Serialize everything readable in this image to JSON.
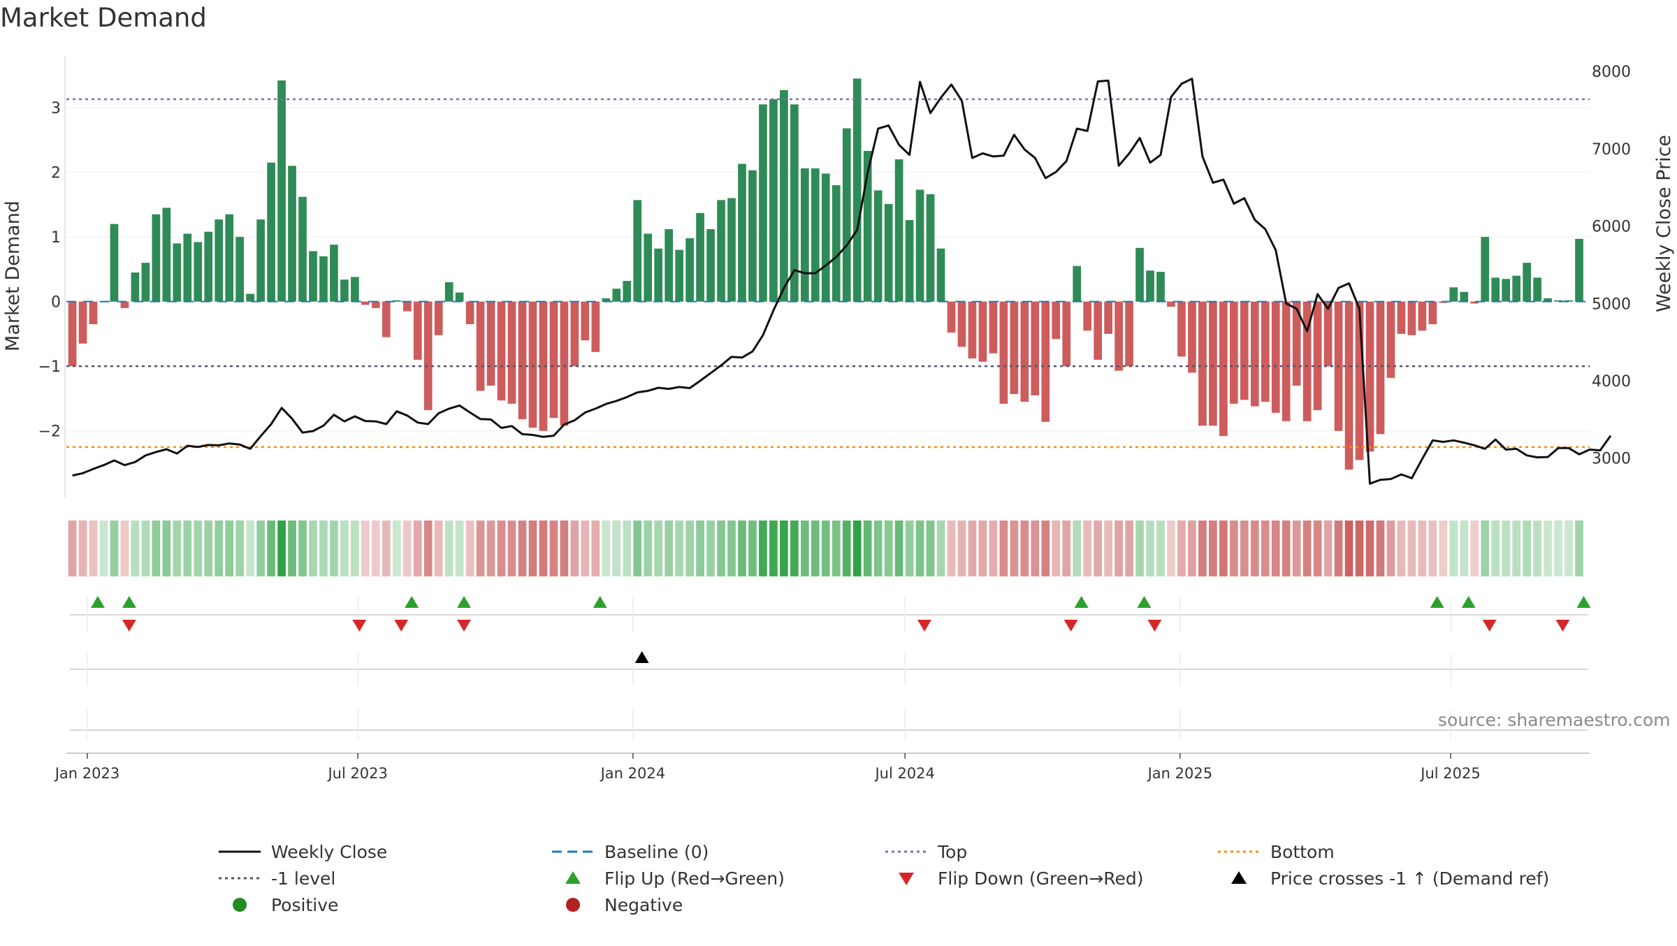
{
  "chart_data": {
    "type": "bar",
    "title": "Market Demand",
    "ylabel": "Market Demand",
    "ylabel_right": "Weekly Close Price",
    "ylim": [
      -2.9,
      3.8
    ],
    "ylim_right": [
      2600,
      8200
    ],
    "yticks": [
      -2,
      -1,
      0,
      1,
      2,
      3
    ],
    "yticks_right": [
      3000,
      4000,
      5000,
      6000,
      7000,
      8000
    ],
    "x_start": "2022-12-18",
    "x_end": "2025-10-02",
    "xticks": [
      {
        "date": "2023-01-01",
        "label": "Jan 2023"
      },
      {
        "date": "2023-07-01",
        "label": "Jul 2023"
      },
      {
        "date": "2024-01-01",
        "label": "Jan 2024"
      },
      {
        "date": "2024-07-01",
        "label": "Jul 2024"
      },
      {
        "date": "2025-01-01",
        "label": "Jan 2025"
      },
      {
        "date": "2025-07-01",
        "label": "Jul 2025"
      }
    ],
    "first_week": "2022-12-22",
    "demand": [
      -1.0,
      -0.65,
      -0.35,
      0.0,
      1.2,
      -0.1,
      0.45,
      0.6,
      1.35,
      1.45,
      0.9,
      1.05,
      0.92,
      1.08,
      1.27,
      1.35,
      1.0,
      0.12,
      1.27,
      2.15,
      3.42,
      2.1,
      1.62,
      0.78,
      0.7,
      0.88,
      0.34,
      0.38,
      -0.05,
      -0.1,
      -0.55,
      0.02,
      -0.15,
      -0.9,
      -1.68,
      -0.52,
      0.3,
      0.14,
      -0.35,
      -1.38,
      -1.3,
      -1.53,
      -1.58,
      -1.82,
      -1.95,
      -2.0,
      -1.8,
      -1.92,
      -1.0,
      -0.6,
      -0.78,
      0.05,
      0.2,
      0.32,
      1.57,
      1.05,
      0.82,
      1.12,
      0.8,
      0.98,
      1.37,
      1.12,
      1.57,
      1.6,
      2.13,
      2.03,
      3.05,
      3.13,
      3.27,
      3.05,
      2.06,
      2.06,
      1.98,
      1.8,
      2.68,
      3.45,
      2.33,
      1.72,
      1.51,
      2.2,
      1.26,
      1.73,
      1.66,
      0.82,
      -0.48,
      -0.7,
      -0.88,
      -0.93,
      -0.8,
      -1.58,
      -1.43,
      -1.55,
      -1.45,
      -1.86,
      -0.58,
      -1.0,
      0.55,
      -0.45,
      -0.9,
      -0.5,
      -1.07,
      -1.0,
      0.83,
      0.48,
      0.46,
      -0.08,
      -0.85,
      -1.1,
      -1.92,
      -1.92,
      -2.08,
      -1.58,
      -1.52,
      -1.62,
      -1.55,
      -1.72,
      -1.85,
      -1.3,
      -1.85,
      -1.68,
      -1.0,
      -2.0,
      -2.6,
      -2.45,
      -2.32,
      -2.05,
      -1.18,
      -0.5,
      -0.52,
      -0.45,
      -0.35,
      -0.02,
      0.22,
      0.15,
      -0.03,
      1.0,
      0.37,
      0.35,
      0.4,
      0.6,
      0.37,
      0.05,
      0.02,
      0.02,
      0.97
    ],
    "close": [
      2775,
      2805,
      2860,
      2910,
      2970,
      2910,
      2950,
      3035,
      3080,
      3115,
      3060,
      3160,
      3145,
      3170,
      3165,
      3190,
      3175,
      3120,
      3285,
      3440,
      3650,
      3510,
      3330,
      3350,
      3420,
      3560,
      3475,
      3540,
      3480,
      3475,
      3440,
      3605,
      3550,
      3460,
      3440,
      3580,
      3640,
      3680,
      3590,
      3505,
      3500,
      3390,
      3415,
      3310,
      3300,
      3275,
      3290,
      3435,
      3490,
      3590,
      3640,
      3700,
      3740,
      3790,
      3850,
      3870,
      3910,
      3895,
      3920,
      3905,
      4000,
      4100,
      4200,
      4310,
      4300,
      4380,
      4590,
      4910,
      5200,
      5430,
      5390,
      5390,
      5490,
      5600,
      5750,
      5950,
      6690,
      7260,
      7300,
      7050,
      6920,
      7865,
      7460,
      7660,
      7830,
      7620,
      6880,
      6940,
      6900,
      6910,
      7180,
      6990,
      6880,
      6620,
      6700,
      6840,
      7260,
      7230,
      7870,
      7880,
      6780,
      6940,
      7140,
      6820,
      6920,
      7670,
      7840,
      7905,
      6900,
      6560,
      6600,
      6290,
      6360,
      6080,
      5960,
      5690,
      5000,
      4930,
      4640,
      5120,
      4930,
      5200,
      5260,
      4930,
      2670,
      2720,
      2730,
      2790,
      2740,
      2990,
      3230,
      3210,
      3230,
      3200,
      3165,
      3120,
      3240,
      3110,
      3120,
      3035,
      3010,
      3015,
      3130,
      3130,
      3050,
      3110,
      3100,
      3290
    ],
    "flip_up": [
      "2023-01-08",
      "2023-01-29",
      "2023-08-06",
      "2023-09-10",
      "2023-12-10",
      "2024-10-27",
      "2024-12-08",
      "2025-06-22",
      "2025-07-13",
      "2025-09-28"
    ],
    "flip_down": [
      "2023-01-29",
      "2023-07-02",
      "2023-07-30",
      "2023-09-10",
      "2024-07-14",
      "2024-10-20",
      "2024-12-15",
      "2025-07-27",
      "2025-09-14"
    ],
    "price_crosses": [
      "2024-01-07"
    ],
    "levels": {
      "top": 3.13,
      "minus_one": -1.0,
      "bottom": -2.25,
      "baseline": 0
    },
    "legend": [
      {
        "label": "Weekly Close",
        "symbol": "line"
      },
      {
        "label": "Baseline (0)",
        "symbol": "dash"
      },
      {
        "label": "Top",
        "symbol": "dot-purple"
      },
      {
        "label": "Bottom",
        "symbol": "dot-orange"
      },
      {
        "label": "-1 level",
        "symbol": "dot-gray"
      },
      {
        "label": "Flip Up (Red→Green)",
        "symbol": "tri-up"
      },
      {
        "label": "Flip Down (Green→Red)",
        "symbol": "tri-down"
      },
      {
        "label": "Price crosses -1 ↑ (Demand ref)",
        "symbol": "tri-black"
      },
      {
        "label": "Positive",
        "symbol": "dot-green"
      },
      {
        "label": "Negative",
        "symbol": "dot-red"
      }
    ]
  },
  "source": "source: sharemaestro.com",
  "colors": {
    "positive": "#2e8b57",
    "negative": "#cd5c5c",
    "close": "#111111",
    "baseline": "#1f77b4",
    "top": "#7b6fb5",
    "bottom": "#ff8c00",
    "minus_one": "#555566",
    "flip_up": "#2ca02c",
    "flip_down": "#d62728"
  }
}
